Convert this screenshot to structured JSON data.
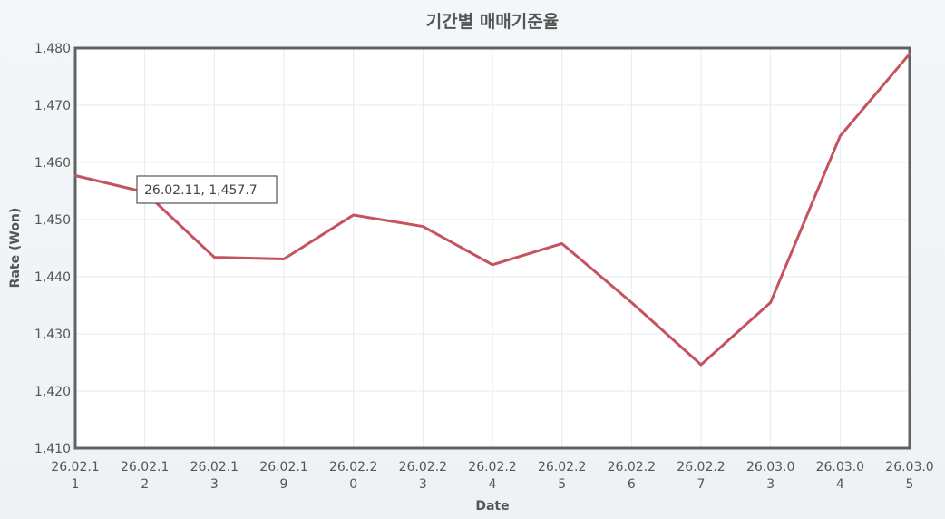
{
  "chart_data": {
    "type": "line",
    "title": "기간별 매매기준율",
    "xlabel": "Date",
    "ylabel": "Rate (Won)",
    "categories": [
      "26.02.11",
      "26.02.12",
      "26.02.13",
      "26.02.19",
      "26.02.20",
      "26.02.23",
      "26.02.24",
      "26.02.25",
      "26.02.26",
      "26.02.27",
      "26.03.03",
      "26.03.04",
      "26.03.05"
    ],
    "category_label_lines": [
      [
        "26.02.1",
        "1"
      ],
      [
        "26.02.1",
        "2"
      ],
      [
        "26.02.1",
        "3"
      ],
      [
        "26.02.1",
        "9"
      ],
      [
        "26.02.2",
        "0"
      ],
      [
        "26.02.2",
        "3"
      ],
      [
        "26.02.2",
        "4"
      ],
      [
        "26.02.2",
        "5"
      ],
      [
        "26.02.2",
        "6"
      ],
      [
        "26.02.2",
        "7"
      ],
      [
        "26.03.0",
        "3"
      ],
      [
        "26.03.0",
        "4"
      ],
      [
        "26.03.0",
        "5"
      ]
    ],
    "values": [
      1457.7,
      1454.8,
      1443.4,
      1443.1,
      1450.8,
      1448.8,
      1442.1,
      1445.8,
      1435.5,
      1424.6,
      1435.5,
      1464.6,
      1479.0
    ],
    "ylim": [
      1410,
      1480
    ],
    "yticks": [
      1410,
      1420,
      1430,
      1440,
      1450,
      1460,
      1470,
      1480
    ],
    "ytick_labels": [
      "1,410",
      "1,420",
      "1,430",
      "1,440",
      "1,450",
      "1,460",
      "1,470",
      "1,480"
    ],
    "grid": true,
    "legend": "none",
    "line_color": "#c4535f",
    "tooltip": {
      "text": "26.02.11, 1,457.7",
      "index": 0
    }
  }
}
